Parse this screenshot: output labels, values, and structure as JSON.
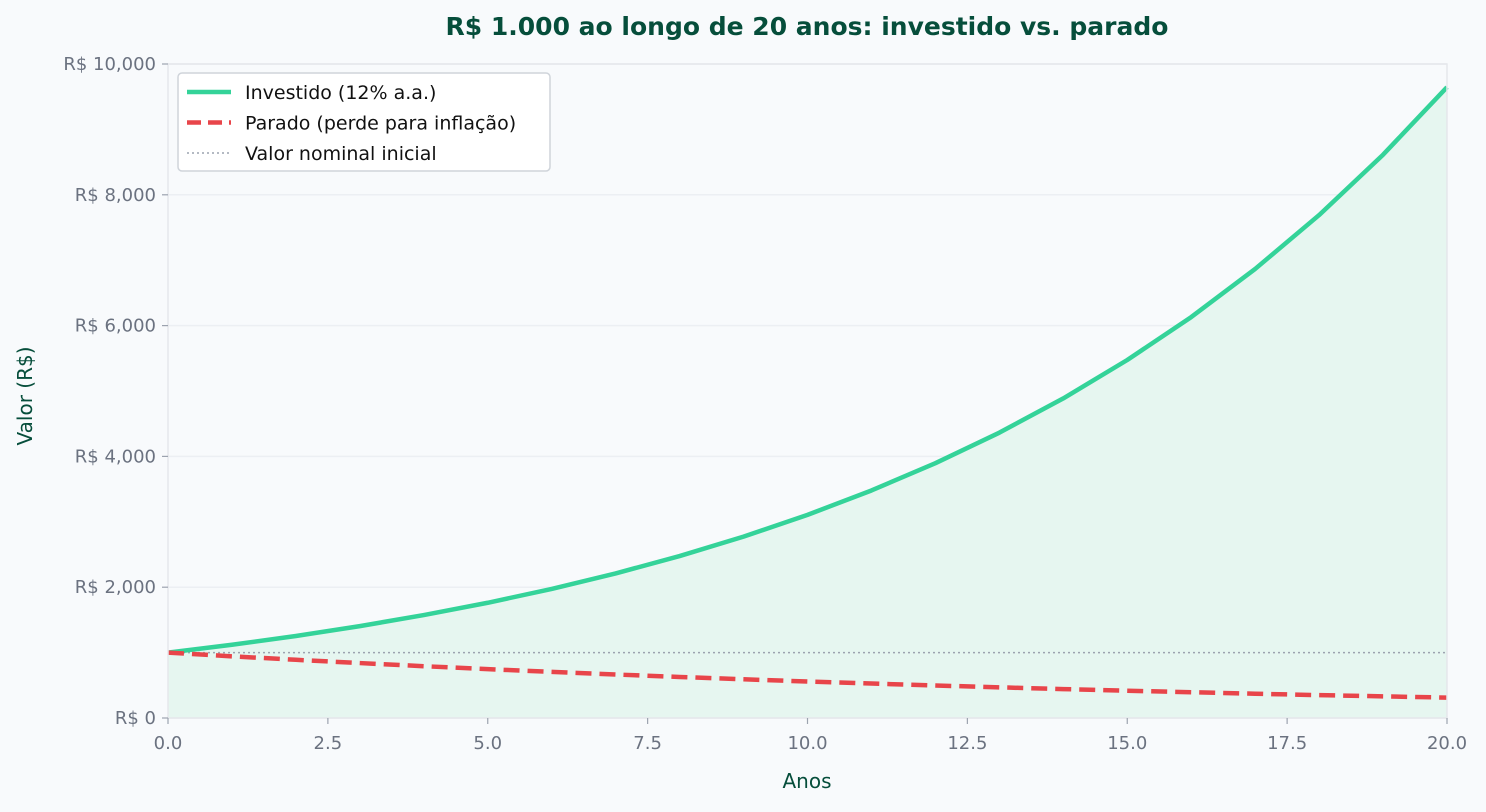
{
  "colors": {
    "investido": "#34d399",
    "parado": "#e8454a",
    "nominal": "#9ca3af",
    "fill": "#e6f6f0",
    "title": "#064e3b",
    "grid": "#eceff3",
    "tick": "#6b7280",
    "background": "#f8fafc"
  },
  "chart_data": {
    "type": "line",
    "title": "R$ 1.000 ao longo de 20 anos: investido vs. parado",
    "xlabel": "Anos",
    "ylabel": "Valor (R$)",
    "xlim": [
      0,
      20
    ],
    "ylim": [
      0,
      10000
    ],
    "grid": true,
    "legend_position": "top-left",
    "x_ticks": [
      "0.0",
      "2.5",
      "5.0",
      "7.5",
      "10.0",
      "12.5",
      "15.0",
      "17.5",
      "20.0"
    ],
    "y_ticks": [
      "R$ 0",
      "R$ 2,000",
      "R$ 4,000",
      "R$ 6,000",
      "R$ 8,000",
      "R$ 10,000"
    ],
    "x": [
      0,
      1,
      2,
      3,
      4,
      5,
      6,
      7,
      8,
      9,
      10,
      11,
      12,
      13,
      14,
      15,
      16,
      17,
      18,
      19,
      20
    ],
    "series": [
      {
        "name": "Investido (12% a.a.)",
        "style": "solid",
        "color": "#34d399",
        "values": [
          1000,
          1120,
          1254,
          1405,
          1574,
          1762,
          1974,
          2211,
          2476,
          2773,
          3106,
          3479,
          3896,
          4363,
          4887,
          5474,
          6130,
          6866,
          7690,
          8613,
          9646
        ]
      },
      {
        "name": "Parado (perde para inflação)",
        "style": "dashed",
        "color": "#e8454a",
        "values": [
          1000,
          943,
          890,
          840,
          792,
          747,
          705,
          665,
          627,
          592,
          558,
          527,
          497,
          469,
          442,
          417,
          394,
          371,
          350,
          331,
          312
        ]
      },
      {
        "name": "Valor nominal inicial",
        "style": "dotted",
        "color": "#9ca3af",
        "values": [
          1000,
          1000,
          1000,
          1000,
          1000,
          1000,
          1000,
          1000,
          1000,
          1000,
          1000,
          1000,
          1000,
          1000,
          1000,
          1000,
          1000,
          1000,
          1000,
          1000,
          1000
        ]
      }
    ]
  }
}
